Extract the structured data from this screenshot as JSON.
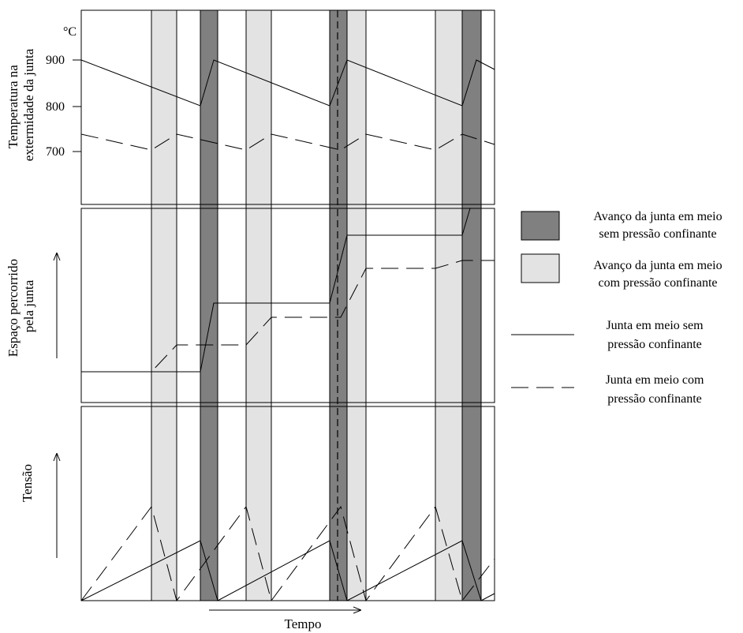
{
  "top_panel": {
    "unit": "°C",
    "tick_labels": [
      "900",
      "800",
      "700"
    ],
    "ylabel_lines": [
      "Temperatura na",
      "extermidade da junta"
    ]
  },
  "middle_panel": {
    "ylabel_lines": [
      "Espaço percorrido",
      "pela junta"
    ]
  },
  "bottom_panel": {
    "ylabel": "Tensão"
  },
  "xlabel": "Tempo",
  "legend": {
    "dark_band": [
      "Avanço da junta em meio",
      "sem pressão confinante"
    ],
    "light_band": [
      "Avanço da junta em meio",
      "com pressão confinante"
    ],
    "solid_line": [
      "Junta em meio sem",
      "pressão confinante"
    ],
    "dashed_line": [
      "Junta em meio com",
      "pressão confinante"
    ]
  },
  "colors": {
    "dark_band": "#808080",
    "light_band": "#e3e3e3",
    "line": "#000000",
    "frame": "#000000"
  }
}
